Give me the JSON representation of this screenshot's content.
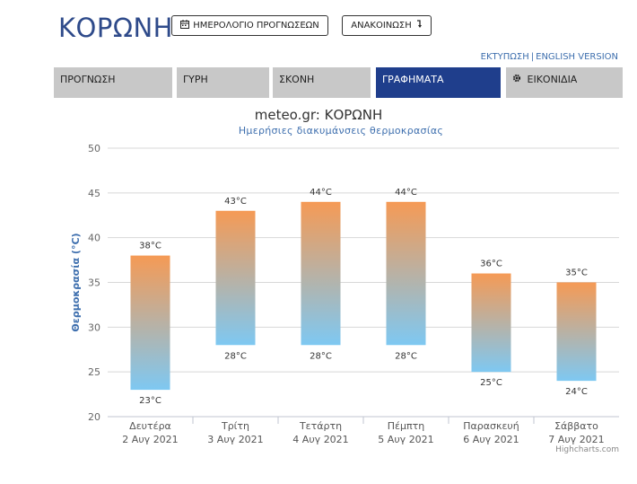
{
  "header": {
    "city": "ΚΟΡΩΝΗ",
    "calendar_button": "ΗΜΕΡΟΛΟΓΙΟ ΠΡΟΓΝΩΣΕΩΝ",
    "calendar_icon": "calendar-icon",
    "announcement_button": "ΑΝΑΚΟΙΝΩΣΗ",
    "announcement_icon": "arrow-down-icon",
    "print_link": "ΕΚΤΥΠΩΣΗ",
    "separator": "|",
    "english_link": "ENGLISH VERSION"
  },
  "tabs": [
    {
      "label": "ΠΡΟΓΝΩΣΗ"
    },
    {
      "label": "ΓΥΡΗ"
    },
    {
      "label": "ΣΚΟΝΗ"
    },
    {
      "label": "ΓΡΑΦΗΜΑΤΑ",
      "active": true
    },
    {
      "label": "ΕΙΚΟΝΙΔΙΑ",
      "icon": "gear-icon"
    }
  ],
  "colors": {
    "accent": "#1f3e8c",
    "tab_bg": "#c8c8c8",
    "title_blue": "#2e4a8a",
    "bar_top": "#f59a55",
    "bar_bottom": "#7ec8f2"
  },
  "credit": "Highcharts.com",
  "chart_data": {
    "type": "columnrange",
    "title": "meteo.gr: ΚΟΡΩΝΗ",
    "subtitle": "Ημερήσιες διακυμάνσεις θερμοκρασίας",
    "ylabel": "Θερμοκρασία (°C)",
    "ylim": [
      20,
      50
    ],
    "yticks": [
      20,
      25,
      30,
      35,
      40,
      45,
      50
    ],
    "grid": true,
    "categories": [
      {
        "day": "Δευτέρα",
        "date": "2 Αυγ 2021"
      },
      {
        "day": "Τρίτη",
        "date": "3 Αυγ 2021"
      },
      {
        "day": "Τετάρτη",
        "date": "4 Αυγ 2021"
      },
      {
        "day": "Πέμπτη",
        "date": "5 Αυγ 2021"
      },
      {
        "day": "Παρασκευή",
        "date": "6 Αυγ 2021"
      },
      {
        "day": "Σάββατο",
        "date": "7 Αυγ 2021"
      }
    ],
    "low": [
      23,
      28,
      28,
      28,
      25,
      24
    ],
    "high": [
      38,
      43,
      44,
      44,
      36,
      35
    ],
    "unit": "°C"
  }
}
